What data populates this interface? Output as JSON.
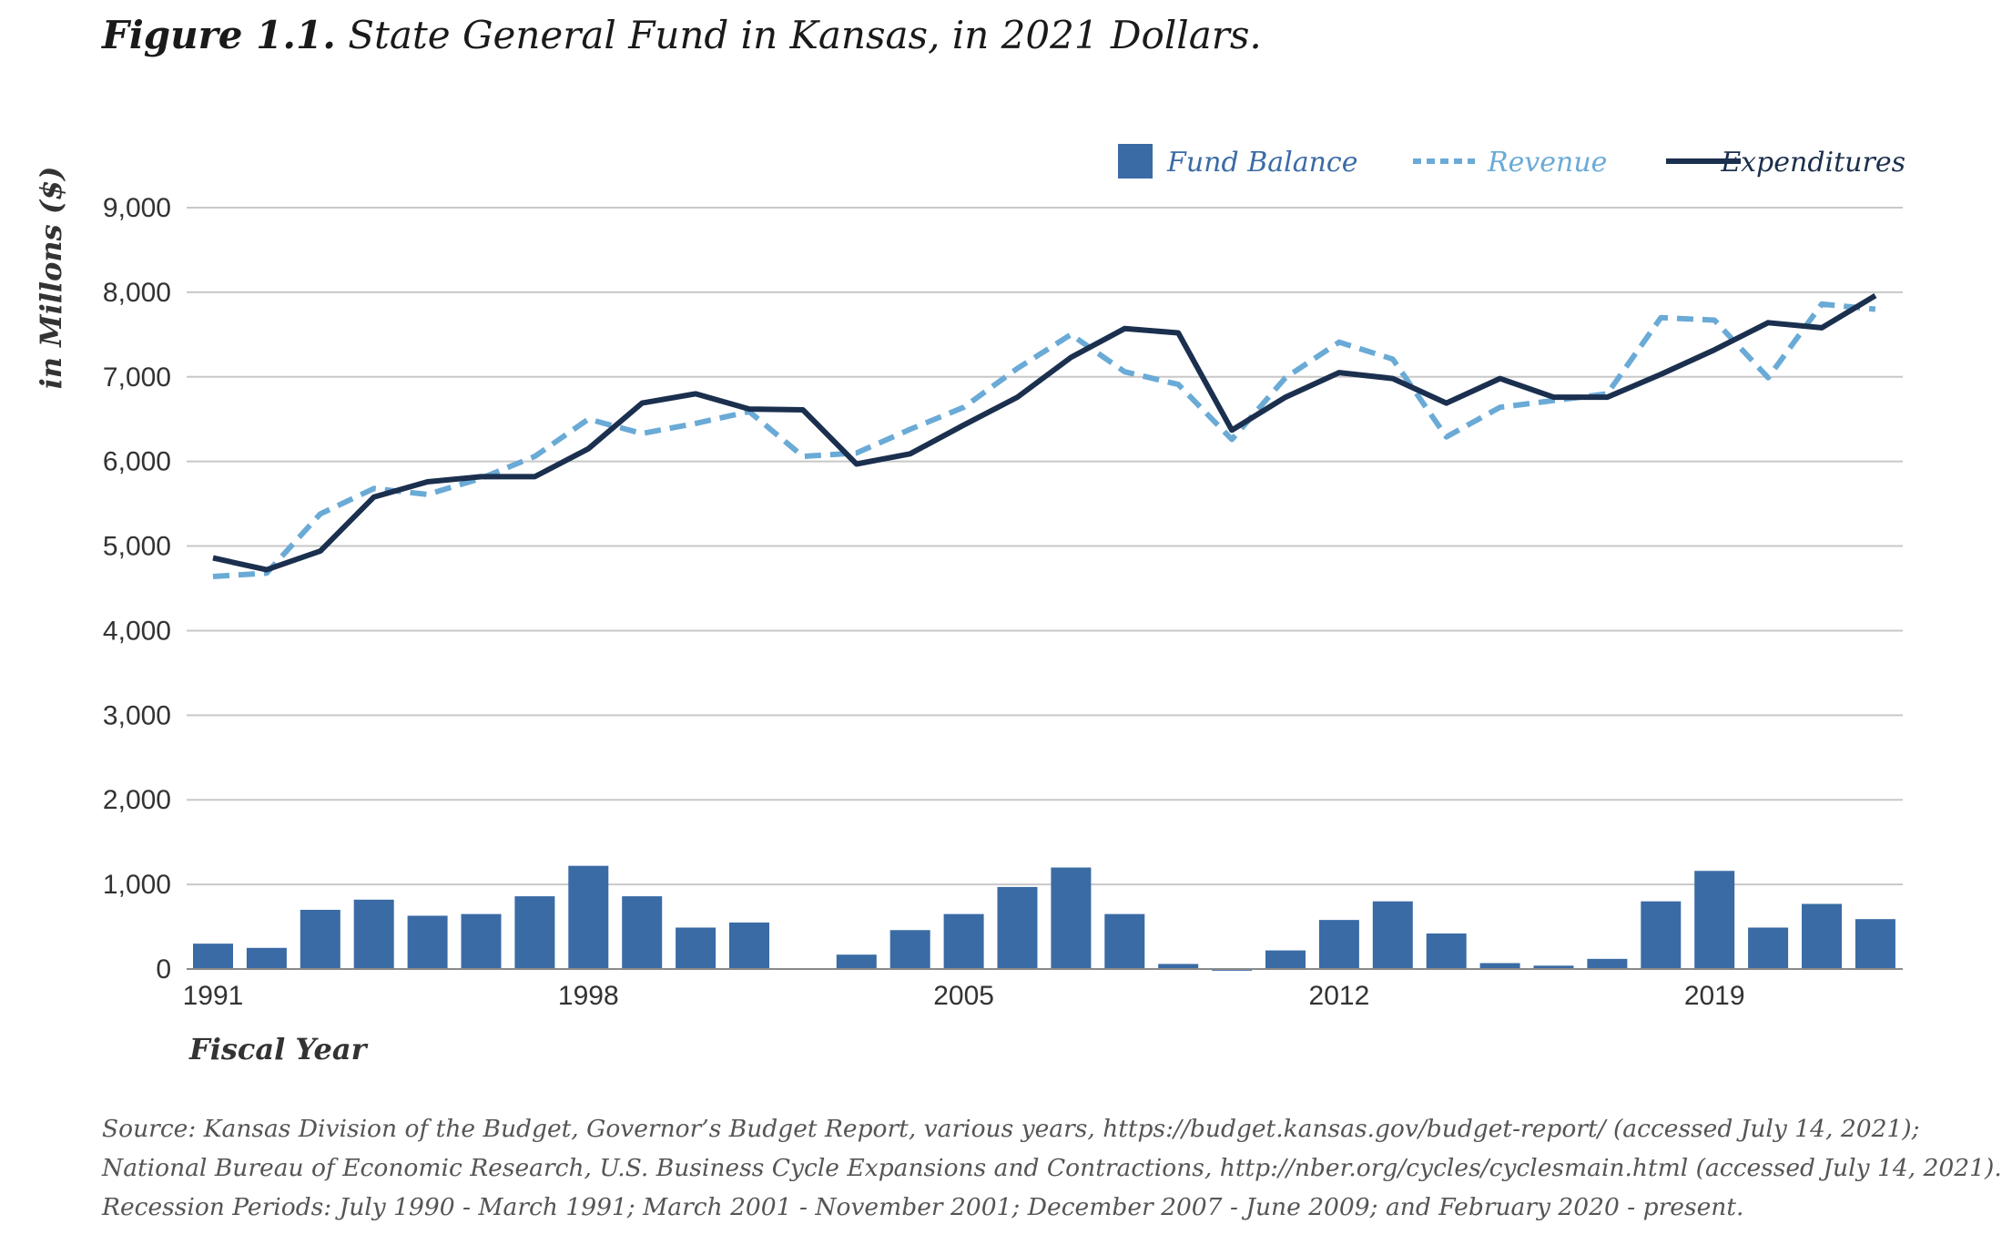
{
  "figure": {
    "label": "Figure 1.1.",
    "title": "State General Fund in Kansas, in 2021 Dollars."
  },
  "source_lines": [
    "Source: Kansas Division of the Budget, Governor’s Budget Report, various years, https://budget.kansas.gov/budget-report/ (accessed July 14, 2021);",
    "National Bureau of Economic Research, U.S. Business Cycle Expansions and Contractions, http://nber.org/cycles/cyclesmain.html (accessed July 14, 2021).",
    "Recession Periods: July 1990 - March 1991; March 2001 - November 2001; December 2007 - June 2009; and February 2020 - present."
  ],
  "colors": {
    "fund_balance": "#3a6ba5",
    "revenue": "#6aaad6",
    "expenditures": "#1b2f4e",
    "grid": "#c8c8c8"
  },
  "chart_data": {
    "type": "bar+line",
    "xlabel": "Fiscal Year",
    "ylabel": "in Millons ($)",
    "ylim": [
      0,
      9000
    ],
    "yticks": [
      "0",
      "1,000",
      "2,000",
      "3,000",
      "4,000",
      "5,000",
      "6,000",
      "7,000",
      "8,000",
      "9,000"
    ],
    "ytick_values": [
      0,
      1000,
      2000,
      3000,
      4000,
      5000,
      6000,
      7000,
      8000,
      9000
    ],
    "x_ticks_shown": [
      "1991",
      "1998",
      "2005",
      "2012",
      "2019"
    ],
    "x": [
      1991,
      1992,
      1993,
      1994,
      1995,
      1996,
      1997,
      1998,
      1999,
      2000,
      2001,
      2002,
      2003,
      2004,
      2005,
      2006,
      2007,
      2008,
      2009,
      2010,
      2011,
      2012,
      2013,
      2014,
      2015,
      2016,
      2017,
      2018,
      2019,
      2020,
      2021,
      2022
    ],
    "legend_position": "top-right",
    "grid": true,
    "series": [
      {
        "name": "Fund Balance",
        "type": "bar",
        "values": [
          300,
          250,
          700,
          820,
          630,
          650,
          860,
          1220,
          860,
          490,
          550,
          10,
          170,
          460,
          650,
          970,
          1200,
          650,
          60,
          -20,
          220,
          580,
          800,
          420,
          70,
          40,
          120,
          800,
          1160,
          490,
          770,
          590
        ]
      },
      {
        "name": "Revenue",
        "type": "line-dashed",
        "values": [
          4640,
          4680,
          5380,
          5680,
          5610,
          5800,
          6060,
          6500,
          6330,
          6450,
          6590,
          6060,
          6100,
          6380,
          6640,
          7100,
          7500,
          7060,
          6910,
          6260,
          6990,
          7410,
          7210,
          6290,
          6640,
          6720,
          6800,
          7700,
          7670,
          6990,
          7860,
          7800
        ]
      },
      {
        "name": "Expenditures",
        "type": "line",
        "values": [
          4860,
          4720,
          4940,
          5580,
          5760,
          5820,
          5820,
          6150,
          6690,
          6800,
          6620,
          6610,
          5970,
          6090,
          6430,
          6760,
          7230,
          7570,
          7520,
          6370,
          6760,
          7050,
          6980,
          6690,
          6980,
          6760,
          6760,
          7030,
          7320,
          7640,
          7580,
          7960
        ]
      }
    ]
  }
}
